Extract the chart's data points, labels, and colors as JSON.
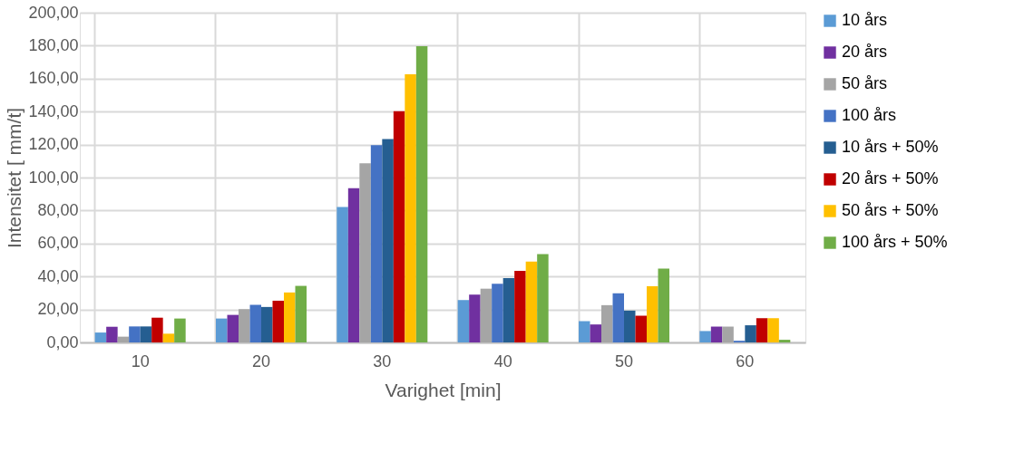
{
  "chart_data": {
    "type": "bar",
    "xlabel": "Varighet [min]",
    "ylabel": "Intensitet [ mm/t]",
    "categories": [
      "10",
      "20",
      "30",
      "40",
      "50",
      "60"
    ],
    "series": [
      {
        "name": "10 års",
        "color": "#5b9bd5",
        "values": [
          6.0,
          14.5,
          82.1,
          25.7,
          12.9,
          6.9
        ]
      },
      {
        "name": "20 års",
        "color": "#7030a0",
        "values": [
          9.5,
          16.7,
          93.5,
          29.0,
          10.9,
          9.6
        ]
      },
      {
        "name": "50 års",
        "color": "#a5a5a5",
        "values": [
          3.5,
          20.2,
          108.7,
          32.6,
          22.6,
          9.6
        ]
      },
      {
        "name": "100 års",
        "color": "#4472c4",
        "values": [
          9.7,
          22.8,
          119.7,
          35.6,
          29.8,
          1.0
        ]
      },
      {
        "name": "10 års + 50%",
        "color": "#255e91",
        "values": [
          9.7,
          21.5,
          123.3,
          39.0,
          19.3,
          10.4
        ]
      },
      {
        "name": "20 års + 50%",
        "color": "#c00000",
        "values": [
          15.0,
          25.3,
          140.3,
          43.4,
          16.2,
          14.7
        ]
      },
      {
        "name": "50 års + 50%",
        "color": "#ffc000",
        "values": [
          5.3,
          30.3,
          162.7,
          49.1,
          34.1,
          14.7
        ]
      },
      {
        "name": "100 års + 50%",
        "color": "#70ad47",
        "values": [
          14.5,
          34.3,
          179.7,
          53.6,
          44.8,
          1.6
        ]
      }
    ],
    "ylim": [
      0,
      200
    ],
    "yticks": [
      {
        "value": 0,
        "label": "0,00"
      },
      {
        "value": 20,
        "label": "20,00"
      },
      {
        "value": 40,
        "label": "40,00"
      },
      {
        "value": 60,
        "label": "60,00"
      },
      {
        "value": 80,
        "label": "80,00"
      },
      {
        "value": 100,
        "label": "100,00"
      },
      {
        "value": 120,
        "label": "120,00"
      },
      {
        "value": 140,
        "label": "140,00"
      },
      {
        "value": 160,
        "label": "160,00"
      },
      {
        "value": 180,
        "label": "180,00"
      },
      {
        "value": 200,
        "label": "200,00"
      }
    ],
    "grid": true,
    "legend": "right"
  }
}
